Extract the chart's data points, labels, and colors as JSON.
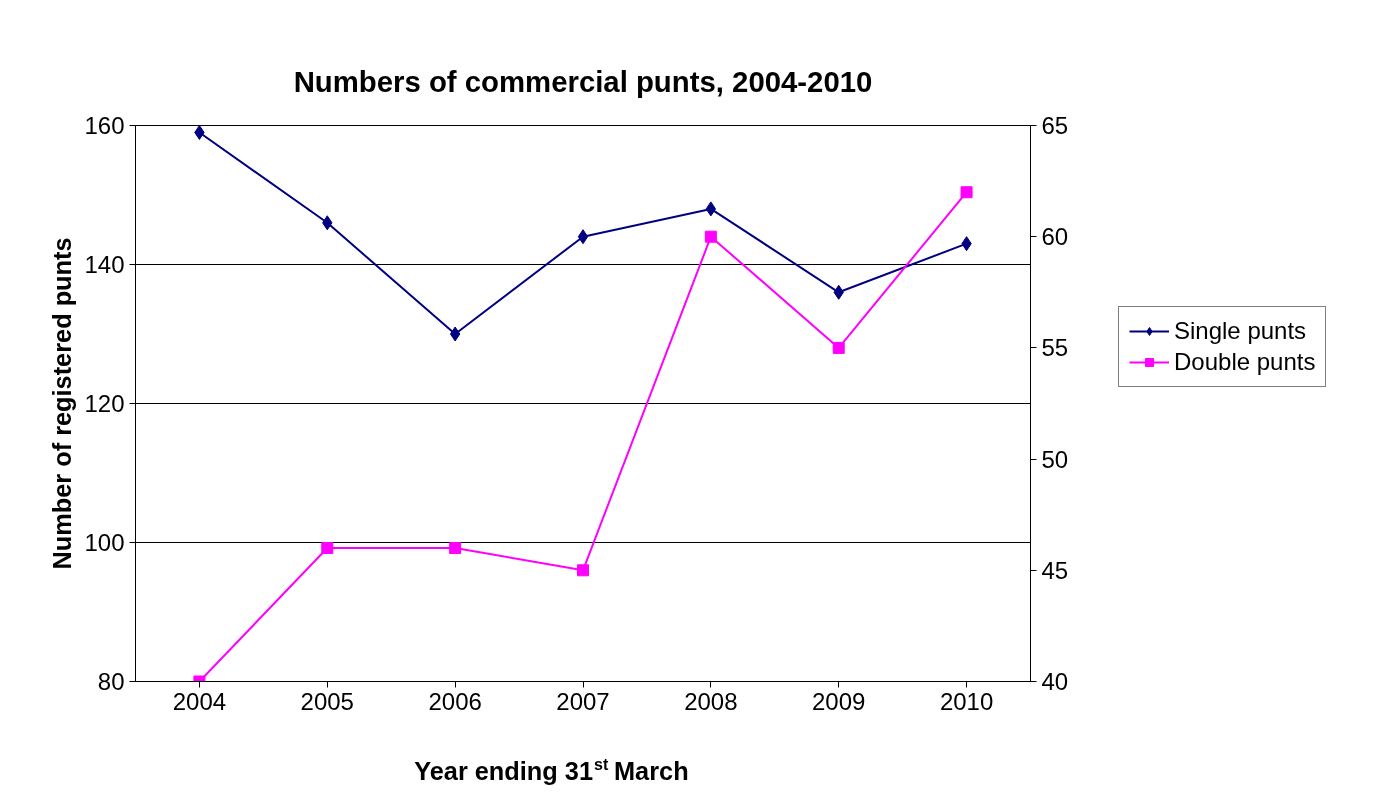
{
  "chart_data": {
    "type": "line",
    "title": "Numbers of commercial punts, 2004-2010",
    "xlabel": "Year ending 31$^{st}$ March",
    "ylabel": "Number of registered punts",
    "categories": [
      "2004",
      "2005",
      "2006",
      "2007",
      "2008",
      "2009",
      "2010"
    ],
    "series": [
      {
        "name": "Single punts",
        "color": "#000080",
        "marker": "diamond",
        "values": [
          159,
          146,
          130,
          144,
          148,
          136,
          143
        ]
      },
      {
        "name": "Double punts",
        "color": "#ff00ff",
        "marker": "square",
        "axis": "y2",
        "values": [
          40,
          46,
          46,
          45,
          60,
          55,
          62
        ]
      }
    ],
    "ylim": [
      80,
      160
    ],
    "yticks": [
      80,
      100,
      120,
      140,
      160
    ],
    "y2lim": [
      40,
      65
    ],
    "y2ticks": [
      40,
      45,
      50,
      55,
      60,
      65
    ],
    "grid": "y",
    "legend": "right"
  }
}
